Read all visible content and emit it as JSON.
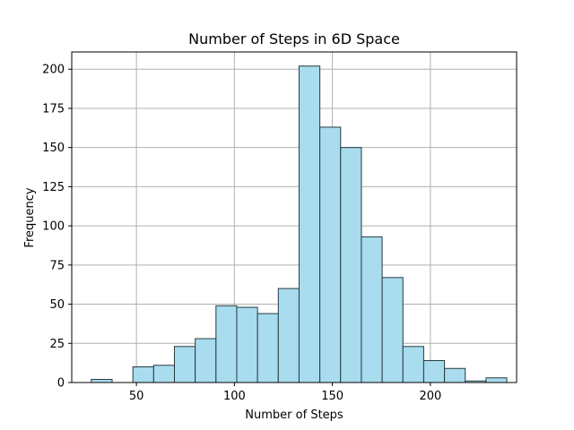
{
  "chart_data": {
    "type": "bar",
    "title": "Number of Steps in 6D Space",
    "xlabel": "Number of Steps",
    "ylabel": "Frequency",
    "xlim": [
      17,
      244
    ],
    "ylim": [
      0,
      211
    ],
    "xticks": [
      50,
      100,
      150,
      200
    ],
    "yticks": [
      0,
      25,
      50,
      75,
      100,
      125,
      150,
      175,
      200
    ],
    "grid": true,
    "bin_width": 10.6,
    "bin_edges": [
      27,
      37.6,
      48.2,
      58.8,
      69.4,
      80,
      90.6,
      101.2,
      111.8,
      122.4,
      133,
      143.6,
      154.2,
      164.8,
      175.4,
      186,
      196.6,
      207.2,
      217.8,
      228.4,
      239
    ],
    "values": [
      2,
      0,
      10,
      11,
      23,
      28,
      49,
      48,
      44,
      60,
      202,
      163,
      150,
      93,
      67,
      23,
      14,
      9,
      1,
      3
    ],
    "bar_color": "#a8dcee",
    "edge_color": "#2a3a40"
  }
}
